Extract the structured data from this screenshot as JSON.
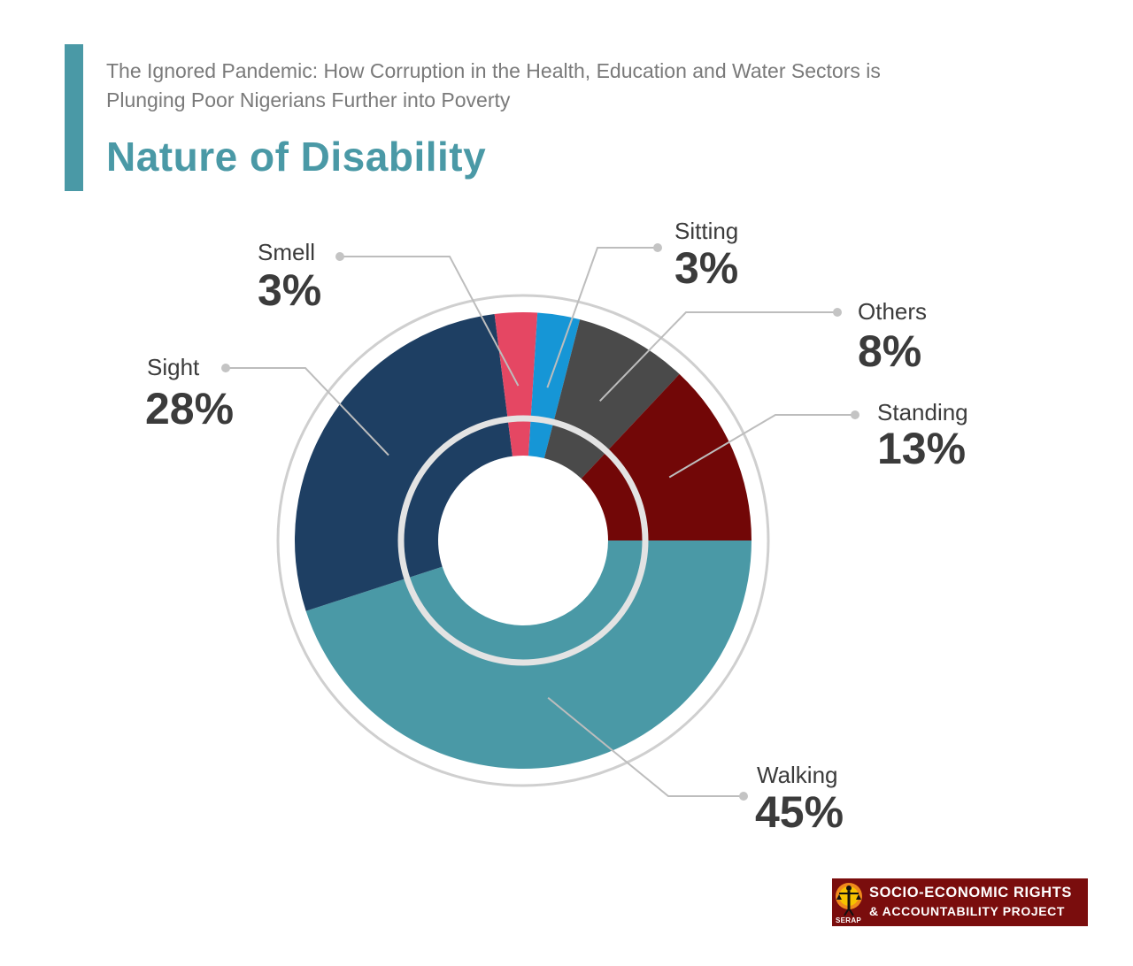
{
  "header": {
    "subtitle_line1": "The Ignored Pandemic: How Corruption in the Health, Education and Water Sectors is",
    "subtitle_line2": "Plunging Poor Nigerians Further into Poverty",
    "title": "Nature of Disability"
  },
  "colors": {
    "accent": "#4a99a6",
    "walking": "#4a99a6",
    "sight": "#1e3f63",
    "smell": "#e54763",
    "sitting": "#1696d6",
    "others": "#4a4a4a",
    "standing": "#720707",
    "ring": "#cfcfcf",
    "logo_bg": "#7a0d0d"
  },
  "chart_data": {
    "type": "pie",
    "style": "donut",
    "categories": [
      "Walking",
      "Sight",
      "Smell",
      "Sitting",
      "Others",
      "Standing"
    ],
    "values": [
      45,
      28,
      3,
      3,
      8,
      13
    ],
    "labels": [
      "45%",
      "28%",
      "3%",
      "3%",
      "8%",
      "13%"
    ],
    "title": "Nature of Disability",
    "legend": "none"
  },
  "logo": {
    "line1": "SOCIO-ECONOMIC RIGHTS",
    "line2": "& ACCOUNTABILITY PROJECT",
    "short": "SERAP",
    "emblem": "justice-scales-figure-icon"
  }
}
